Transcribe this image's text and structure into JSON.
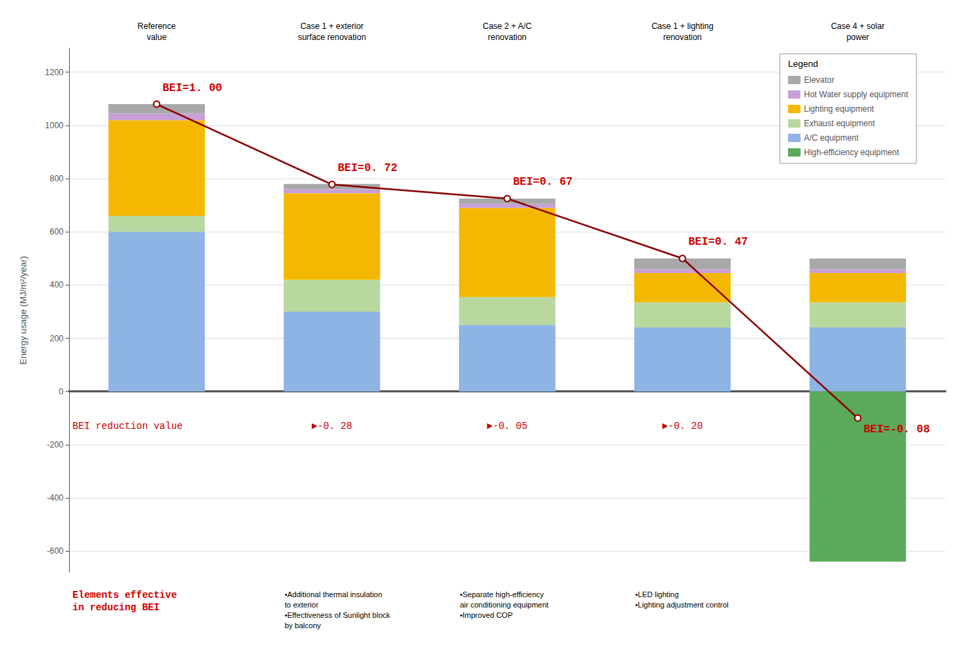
{
  "chart_data": {
    "type": "bar",
    "stacked": true,
    "categories": [
      "Reference\nvalue",
      "Case 1 + exterior\nsurface renovation",
      "Case 2 + A/C\nrenovation",
      "Case 1 + lighting\nrenovation",
      "Case 4 + solar\npower"
    ],
    "series": [
      {
        "name": "A/C equipment",
        "type": "bar",
        "color": "#8eb4e3",
        "values": [
          600,
          300,
          250,
          240,
          240
        ]
      },
      {
        "name": "Exhaust equipment",
        "type": "bar",
        "color": "#b8d8a0",
        "values": [
          60,
          120,
          105,
          95,
          95
        ]
      },
      {
        "name": "Lighting equipment",
        "type": "bar",
        "color": "#f5b800",
        "values": [
          360,
          325,
          335,
          110,
          110
        ]
      },
      {
        "name": "Hot Water supply equipment",
        "type": "bar",
        "color": "#c8a0d8",
        "values": [
          25,
          15,
          15,
          15,
          15
        ]
      },
      {
        "name": "Elevator",
        "type": "bar",
        "color": "#a8a8a8",
        "values": [
          35,
          20,
          20,
          40,
          40
        ]
      },
      {
        "name": "High-efficiency equipment",
        "type": "bar",
        "color": "#5aaa5a",
        "values": [
          0,
          0,
          0,
          0,
          -640
        ]
      },
      {
        "type": "line",
        "color": "#8b0000",
        "marker": "circle",
        "values": [
          1080,
          778,
          725,
          500,
          -100
        ],
        "notes": [
          {
            "text": "BEI=1. 00",
            "color": "#cc0000"
          },
          {
            "text": "BEI=0. 72",
            "color": "#cc0000"
          },
          {
            "text": "BEI=0. 67",
            "color": "#cc0000"
          },
          {
            "text": "BEI=0. 47",
            "color": "#cc0000"
          },
          {
            "text": "BEI=-0. 08",
            "color": "#cc0000"
          }
        ]
      }
    ],
    "ylabel": "Energy usage (MJ/m²/year)",
    "ylim": [
      -680,
      1290
    ],
    "yticks": [
      -600,
      -400,
      -200,
      0,
      200,
      400,
      600,
      800,
      1000,
      1200
    ],
    "grid": true,
    "legend": "upper right",
    "legend_title": "Legend",
    "annotations": [
      {
        "text": "BEI reduction value",
        "y": -130,
        "color": "#cc0000"
      },
      {
        "text": "►-0. 28",
        "category": "Case 1 + exterior\nsurface renovation",
        "y": -130,
        "color": "#cc0000"
      },
      {
        "text": "►-0. 05",
        "category": "Case 2 + A/C\nrenovation",
        "y": -130,
        "color": "#cc0000"
      },
      {
        "text": "►-0. 20",
        "category": "Case 1 + lighting\nrenovation",
        "y": -130,
        "color": "#cc0000"
      },
      {
        "text": "Elements effective\nin reducing BEI",
        "color": "#cc0000"
      },
      {
        "text": "•Additional thermal insulation\nto exterior\n•Effectiveness of Sunlight block\nby balcony",
        "category": "Case 1 + exterior\nsurface renovation"
      },
      {
        "text": "•Separate high-efficiency\nair conditioning equipment\n•Improved COP",
        "category": "Case 2 + A/C\nrenovation"
      },
      {
        "text": "•LED lighting\n•Lighting adjustment control",
        "category": "Case 1 + lighting\nrenovation"
      }
    ]
  }
}
